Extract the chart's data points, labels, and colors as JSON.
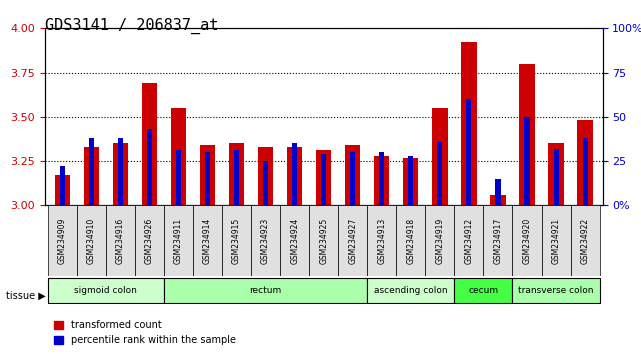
{
  "title": "GDS3141 / 206837_at",
  "samples": [
    "GSM234909",
    "GSM234910",
    "GSM234916",
    "GSM234926",
    "GSM234911",
    "GSM234914",
    "GSM234915",
    "GSM234923",
    "GSM234924",
    "GSM234925",
    "GSM234927",
    "GSM234913",
    "GSM234918",
    "GSM234919",
    "GSM234912",
    "GSM234917",
    "GSM234920",
    "GSM234921",
    "GSM234922"
  ],
  "red_values": [
    3.17,
    3.33,
    3.35,
    3.69,
    3.55,
    3.34,
    3.35,
    3.33,
    3.33,
    3.31,
    3.34,
    3.28,
    3.27,
    3.55,
    3.92,
    3.06,
    3.8,
    3.35,
    3.48
  ],
  "blue_values": [
    0.22,
    0.38,
    0.38,
    0.43,
    0.31,
    0.3,
    0.31,
    0.25,
    0.35,
    0.29,
    0.3,
    0.3,
    0.28,
    0.36,
    0.6,
    0.15,
    0.5,
    0.32,
    0.38
  ],
  "ylim_left": [
    3.0,
    4.0
  ],
  "ylim_right": [
    0,
    1.0
  ],
  "yticks_left": [
    3.0,
    3.25,
    3.5,
    3.75,
    4.0
  ],
  "yticks_right": [
    0,
    0.25,
    0.5,
    0.75,
    1.0
  ],
  "ytick_labels_right": [
    "0%",
    "25",
    "50",
    "75",
    "100%"
  ],
  "tissue_groups": [
    {
      "label": "sigmoid colon",
      "start": 0,
      "end": 4,
      "color": "#ccffcc"
    },
    {
      "label": "rectum",
      "start": 4,
      "end": 11,
      "color": "#aaffaa"
    },
    {
      "label": "ascending colon",
      "start": 11,
      "end": 14,
      "color": "#ccffcc"
    },
    {
      "label": "cecum",
      "start": 14,
      "end": 16,
      "color": "#44ff44"
    },
    {
      "label": "transverse colon",
      "start": 16,
      "end": 19,
      "color": "#aaffaa"
    }
  ],
  "bar_width": 0.35,
  "red_color": "#cc0000",
  "blue_color": "#0000cc",
  "grid_color": "#000000",
  "bg_color": "#ffffff",
  "title_fontsize": 11,
  "tick_label_fontsize": 7,
  "axis_label_color_left": "#cc0000",
  "axis_label_color_right": "#0000cc"
}
